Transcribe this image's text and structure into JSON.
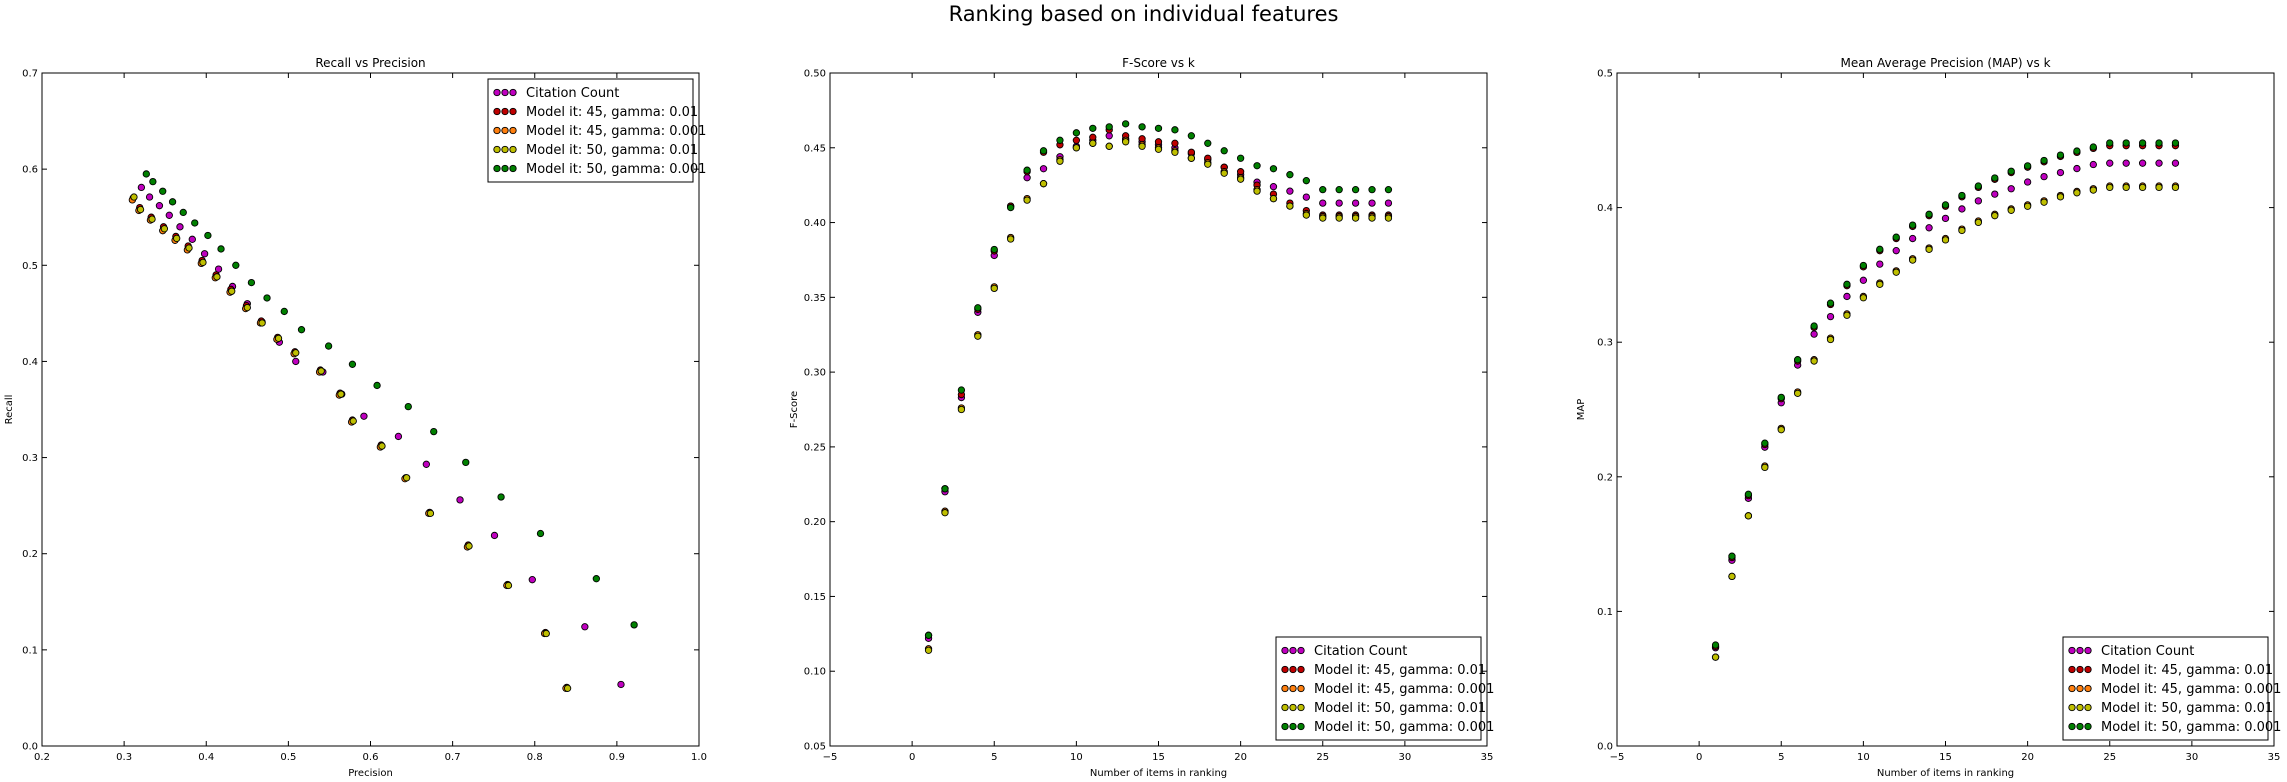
{
  "figure": {
    "suptitle": "Ranking based on individual features"
  },
  "chart_data": [
    {
      "type": "scatter",
      "title": "Recall vs Precision",
      "xlabel": "Precision",
      "ylabel": "Recall",
      "xlim": [
        0.2,
        1.0
      ],
      "ylim": [
        0.0,
        0.7
      ],
      "xticks": [
        "0.2",
        "0.3",
        "0.4",
        "0.5",
        "0.6",
        "0.7",
        "0.8",
        "0.9",
        "1.0"
      ],
      "yticks": [
        "0.0",
        "0.1",
        "0.2",
        "0.3",
        "0.4",
        "0.5",
        "0.6",
        "0.7"
      ],
      "grid": false,
      "legend_position": "top-right",
      "series": [
        {
          "name": "Citation Count",
          "color": "#bf00bf",
          "points": [
            [
              0.321,
              0.581
            ],
            [
              0.331,
              0.571
            ],
            [
              0.343,
              0.562
            ],
            [
              0.355,
              0.552
            ],
            [
              0.368,
              0.54
            ],
            [
              0.383,
              0.527
            ],
            [
              0.398,
              0.512
            ],
            [
              0.415,
              0.496
            ],
            [
              0.432,
              0.478
            ],
            [
              0.45,
              0.46
            ],
            [
              0.468,
              0.441
            ],
            [
              0.489,
              0.42
            ],
            [
              0.509,
              0.4
            ],
            [
              0.542,
              0.389
            ],
            [
              0.565,
              0.366
            ],
            [
              0.592,
              0.343
            ],
            [
              0.634,
              0.322
            ],
            [
              0.668,
              0.293
            ],
            [
              0.709,
              0.256
            ],
            [
              0.751,
              0.219
            ],
            [
              0.797,
              0.173
            ],
            [
              0.861,
              0.124
            ],
            [
              0.905,
              0.064
            ]
          ]
        },
        {
          "name": "Model it: 45, gamma: 0.01",
          "color": "#bf0000",
          "points": [
            [
              0.311,
              0.57
            ],
            [
              0.319,
              0.56
            ],
            [
              0.333,
              0.55
            ],
            [
              0.348,
              0.54
            ],
            [
              0.363,
              0.53
            ],
            [
              0.378,
              0.52
            ],
            [
              0.395,
              0.505
            ],
            [
              0.412,
              0.49
            ],
            [
              0.43,
              0.475
            ],
            [
              0.449,
              0.458
            ],
            [
              0.467,
              0.442
            ],
            [
              0.487,
              0.425
            ],
            [
              0.508,
              0.41
            ],
            [
              0.539,
              0.391
            ],
            [
              0.563,
              0.367
            ],
            [
              0.578,
              0.339
            ],
            [
              0.613,
              0.313
            ],
            [
              0.643,
              0.279
            ],
            [
              0.672,
              0.243
            ],
            [
              0.719,
              0.209
            ],
            [
              0.767,
              0.168
            ],
            [
              0.813,
              0.118
            ],
            [
              0.839,
              0.061
            ]
          ]
        },
        {
          "name": "Model it: 45, gamma: 0.001",
          "color": "#ff7f0e",
          "points": [
            [
              0.31,
              0.568
            ],
            [
              0.318,
              0.557
            ],
            [
              0.332,
              0.547
            ],
            [
              0.347,
              0.536
            ],
            [
              0.362,
              0.526
            ],
            [
              0.377,
              0.516
            ],
            [
              0.394,
              0.502
            ],
            [
              0.411,
              0.487
            ],
            [
              0.429,
              0.472
            ],
            [
              0.448,
              0.455
            ],
            [
              0.466,
              0.44
            ],
            [
              0.486,
              0.423
            ],
            [
              0.507,
              0.408
            ],
            [
              0.538,
              0.389
            ],
            [
              0.562,
              0.365
            ],
            [
              0.577,
              0.337
            ],
            [
              0.612,
              0.311
            ],
            [
              0.642,
              0.278
            ],
            [
              0.671,
              0.242
            ],
            [
              0.718,
              0.207
            ],
            [
              0.766,
              0.167
            ],
            [
              0.812,
              0.117
            ],
            [
              0.838,
              0.06
            ]
          ]
        },
        {
          "name": "Model it: 50, gamma: 0.01",
          "color": "#bfbf00",
          "points": [
            [
              0.312,
              0.571
            ],
            [
              0.32,
              0.558
            ],
            [
              0.334,
              0.548
            ],
            [
              0.349,
              0.538
            ],
            [
              0.364,
              0.528
            ],
            [
              0.379,
              0.518
            ],
            [
              0.396,
              0.503
            ],
            [
              0.413,
              0.488
            ],
            [
              0.431,
              0.473
            ],
            [
              0.45,
              0.456
            ],
            [
              0.468,
              0.44
            ],
            [
              0.488,
              0.424
            ],
            [
              0.509,
              0.409
            ],
            [
              0.54,
              0.39
            ],
            [
              0.564,
              0.366
            ],
            [
              0.579,
              0.338
            ],
            [
              0.614,
              0.312
            ],
            [
              0.644,
              0.279
            ],
            [
              0.673,
              0.242
            ],
            [
              0.72,
              0.208
            ],
            [
              0.768,
              0.167
            ],
            [
              0.814,
              0.117
            ],
            [
              0.84,
              0.06
            ]
          ]
        },
        {
          "name": "Model it: 50, gamma: 0.001",
          "color": "#008000",
          "points": [
            [
              0.327,
              0.595
            ],
            [
              0.335,
              0.587
            ],
            [
              0.347,
              0.577
            ],
            [
              0.359,
              0.566
            ],
            [
              0.372,
              0.555
            ],
            [
              0.386,
              0.544
            ],
            [
              0.402,
              0.531
            ],
            [
              0.418,
              0.517
            ],
            [
              0.436,
              0.5
            ],
            [
              0.455,
              0.482
            ],
            [
              0.474,
              0.466
            ],
            [
              0.495,
              0.452
            ],
            [
              0.516,
              0.433
            ],
            [
              0.549,
              0.416
            ],
            [
              0.578,
              0.397
            ],
            [
              0.608,
              0.375
            ],
            [
              0.646,
              0.353
            ],
            [
              0.677,
              0.327
            ],
            [
              0.716,
              0.295
            ],
            [
              0.759,
              0.259
            ],
            [
              0.807,
              0.221
            ],
            [
              0.875,
              0.174
            ],
            [
              0.921,
              0.126
            ]
          ]
        }
      ]
    },
    {
      "type": "scatter",
      "title": "F-Score vs k",
      "xlabel": "Number of items in ranking",
      "ylabel": "F-Score",
      "xlim": [
        -5,
        35
      ],
      "ylim": [
        0.05,
        0.5
      ],
      "xticks": [
        "−5",
        "0",
        "5",
        "10",
        "15",
        "20",
        "25",
        "30",
        "35"
      ],
      "yticks": [
        "0.05",
        "0.10",
        "0.15",
        "0.20",
        "0.25",
        "0.30",
        "0.35",
        "0.40",
        "0.45",
        "0.50"
      ],
      "grid": false,
      "legend_position": "bottom-right",
      "x": [
        1,
        2,
        3,
        4,
        5,
        6,
        7,
        8,
        9,
        10,
        11,
        12,
        13,
        14,
        15,
        16,
        17,
        18,
        19,
        20,
        21,
        22,
        23,
        24,
        25,
        26,
        27,
        28,
        29
      ],
      "series": [
        {
          "name": "Citation Count",
          "color": "#bf00bf",
          "values": [
            0.122,
            0.22,
            0.283,
            0.34,
            0.378,
            0.411,
            0.43,
            0.436,
            0.444,
            0.451,
            0.455,
            0.458,
            0.456,
            0.454,
            0.452,
            0.45,
            0.446,
            0.442,
            0.437,
            0.432,
            0.427,
            0.424,
            0.421,
            0.417,
            0.413,
            0.413,
            0.413,
            0.413,
            0.413
          ]
        },
        {
          "name": "Model it: 45, gamma: 0.01",
          "color": "#bf0000",
          "values": [
            0.124,
            0.222,
            0.285,
            0.342,
            0.381,
            0.411,
            0.434,
            0.447,
            0.452,
            0.455,
            0.457,
            0.462,
            0.458,
            0.456,
            0.454,
            0.453,
            0.447,
            0.443,
            0.437,
            0.434,
            0.425,
            0.419,
            0.413,
            0.408,
            0.405,
            0.405,
            0.405,
            0.405,
            0.405
          ]
        },
        {
          "name": "Model it: 45, gamma: 0.001",
          "color": "#ff7f0e",
          "values": [
            0.115,
            0.207,
            0.276,
            0.325,
            0.357,
            0.39,
            0.416,
            0.426,
            0.442,
            0.45,
            0.453,
            0.451,
            0.455,
            0.452,
            0.45,
            0.448,
            0.443,
            0.44,
            0.434,
            0.43,
            0.422,
            0.416,
            0.411,
            0.406,
            0.404,
            0.404,
            0.404,
            0.404,
            0.404
          ]
        },
        {
          "name": "Model it: 50, gamma: 0.01",
          "color": "#bfbf00",
          "values": [
            0.114,
            0.206,
            0.275,
            0.324,
            0.356,
            0.389,
            0.415,
            0.426,
            0.441,
            0.45,
            0.453,
            0.451,
            0.454,
            0.451,
            0.449,
            0.447,
            0.443,
            0.439,
            0.433,
            0.429,
            0.421,
            0.416,
            0.411,
            0.405,
            0.403,
            0.403,
            0.403,
            0.403,
            0.403
          ]
        },
        {
          "name": "Model it: 50, gamma: 0.001",
          "color": "#008000",
          "values": [
            0.124,
            0.222,
            0.288,
            0.343,
            0.382,
            0.41,
            0.435,
            0.448,
            0.455,
            0.46,
            0.463,
            0.464,
            0.466,
            0.464,
            0.463,
            0.462,
            0.458,
            0.453,
            0.448,
            0.443,
            0.438,
            0.436,
            0.432,
            0.428,
            0.422,
            0.422,
            0.422,
            0.422,
            0.422
          ]
        }
      ]
    },
    {
      "type": "scatter",
      "title": "Mean Average Precision (MAP) vs k",
      "xlabel": "Number of items in ranking",
      "ylabel": "MAP",
      "xlim": [
        -5,
        35
      ],
      "ylim": [
        0.0,
        0.5
      ],
      "xticks": [
        "−5",
        "0",
        "5",
        "10",
        "15",
        "20",
        "25",
        "30",
        "35"
      ],
      "yticks": [
        "0.0",
        "0.1",
        "0.2",
        "0.3",
        "0.4",
        "0.5"
      ],
      "grid": false,
      "legend_position": "bottom-right",
      "x": [
        1,
        2,
        3,
        4,
        5,
        6,
        7,
        8,
        9,
        10,
        11,
        12,
        13,
        14,
        15,
        16,
        17,
        18,
        19,
        20,
        21,
        22,
        23,
        24,
        25,
        26,
        27,
        28,
        29
      ],
      "series": [
        {
          "name": "Citation Count",
          "color": "#bf00bf",
          "values": [
            0.073,
            0.138,
            0.184,
            0.222,
            0.255,
            0.283,
            0.306,
            0.319,
            0.334,
            0.346,
            0.358,
            0.368,
            0.377,
            0.385,
            0.392,
            0.399,
            0.405,
            0.41,
            0.414,
            0.419,
            0.423,
            0.426,
            0.429,
            0.432,
            0.433,
            0.433,
            0.433,
            0.433,
            0.433
          ]
        },
        {
          "name": "Model it: 45, gamma: 0.01",
          "color": "#bf0000",
          "values": [
            0.074,
            0.14,
            0.186,
            0.224,
            0.258,
            0.286,
            0.311,
            0.328,
            0.342,
            0.356,
            0.368,
            0.377,
            0.386,
            0.394,
            0.401,
            0.408,
            0.415,
            0.421,
            0.426,
            0.43,
            0.434,
            0.438,
            0.441,
            0.444,
            0.446,
            0.446,
            0.446,
            0.446,
            0.446
          ]
        },
        {
          "name": "Model it: 45, gamma: 0.001",
          "color": "#ff7f0e",
          "values": [
            0.066,
            0.126,
            0.171,
            0.208,
            0.236,
            0.263,
            0.287,
            0.303,
            0.321,
            0.334,
            0.344,
            0.353,
            0.362,
            0.37,
            0.377,
            0.384,
            0.39,
            0.395,
            0.399,
            0.402,
            0.405,
            0.409,
            0.412,
            0.414,
            0.416,
            0.416,
            0.416,
            0.416,
            0.416
          ]
        },
        {
          "name": "Model it: 50, gamma: 0.01",
          "color": "#bfbf00",
          "values": [
            0.066,
            0.126,
            0.171,
            0.207,
            0.235,
            0.262,
            0.286,
            0.302,
            0.32,
            0.333,
            0.343,
            0.352,
            0.361,
            0.369,
            0.376,
            0.383,
            0.389,
            0.394,
            0.398,
            0.401,
            0.404,
            0.408,
            0.411,
            0.413,
            0.415,
            0.415,
            0.415,
            0.415,
            0.415
          ]
        },
        {
          "name": "Model it: 50, gamma: 0.001",
          "color": "#008000",
          "values": [
            0.075,
            0.141,
            0.187,
            0.225,
            0.259,
            0.287,
            0.312,
            0.329,
            0.343,
            0.357,
            0.369,
            0.378,
            0.387,
            0.395,
            0.402,
            0.409,
            0.416,
            0.422,
            0.427,
            0.431,
            0.435,
            0.439,
            0.442,
            0.445,
            0.448,
            0.448,
            0.448,
            0.448,
            0.448
          ]
        }
      ]
    }
  ]
}
